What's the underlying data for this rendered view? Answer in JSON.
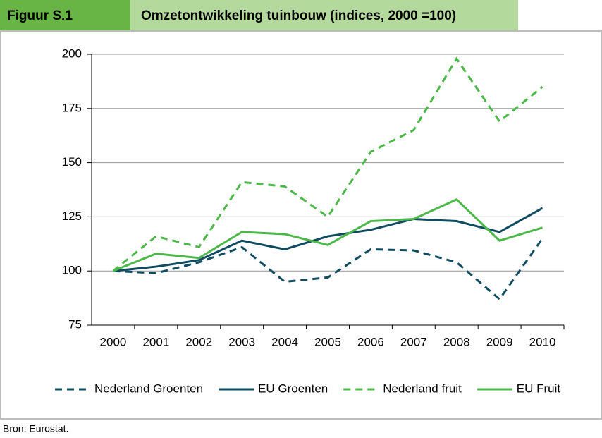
{
  "chart_data": {
    "type": "line",
    "figure_label": "Figuur S.1",
    "title": "Omzetontwikkeling tuinbouw (indices, 2000 =100)",
    "source": "Bron: Eurostat.",
    "categories": [
      "2000",
      "2001",
      "2002",
      "2003",
      "2004",
      "2005",
      "2006",
      "2007",
      "2008",
      "2009",
      "2010"
    ],
    "series": [
      {
        "name": "Nederland Groenten",
        "color": "#0f4c61",
        "dashed": true,
        "values": [
          100,
          99,
          104,
          111,
          95,
          97,
          110,
          109.5,
          104,
          87,
          115
        ]
      },
      {
        "name": "EU Groenten",
        "color": "#0f4c61",
        "dashed": false,
        "values": [
          100,
          102,
          105,
          114,
          110,
          116,
          119,
          124,
          123,
          118,
          129
        ]
      },
      {
        "name": "Nederland fruit",
        "color": "#4cb848",
        "dashed": true,
        "values": [
          100,
          116,
          111,
          141,
          139,
          125,
          155,
          165,
          198,
          169,
          185
        ]
      },
      {
        "name": "EU Fruit",
        "color": "#4cb848",
        "dashed": false,
        "values": [
          100,
          108,
          106,
          118,
          117,
          112,
          123,
          124,
          133,
          114,
          120
        ]
      }
    ],
    "ylim": [
      75,
      200
    ],
    "yticks": [
      75,
      100,
      125,
      150,
      175,
      200
    ],
    "grid": true,
    "legend": "bottom"
  }
}
